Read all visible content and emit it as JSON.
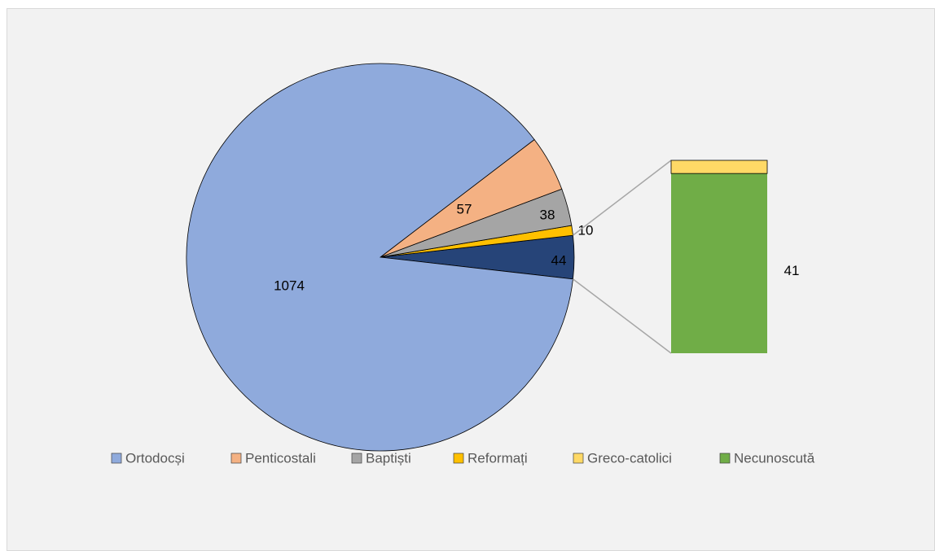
{
  "chart_data": {
    "type": "pie-of-bar",
    "categories": [
      "Ortodocși",
      "Penticostali",
      "Baptiști",
      "Reformați",
      "Greco-catolici",
      "Necunoscută"
    ],
    "values": [
      1074,
      57,
      38,
      10,
      3,
      41
    ],
    "colors": [
      "#8FAADC",
      "#F4B183",
      "#A5A5A5",
      "#FFC000",
      "#FFD966",
      "#70AD47"
    ],
    "show_labels": [
      true,
      true,
      true,
      true,
      false,
      true
    ],
    "split_index": 4,
    "other_value": 44,
    "other_color": "#264478",
    "legend": "bottom"
  }
}
